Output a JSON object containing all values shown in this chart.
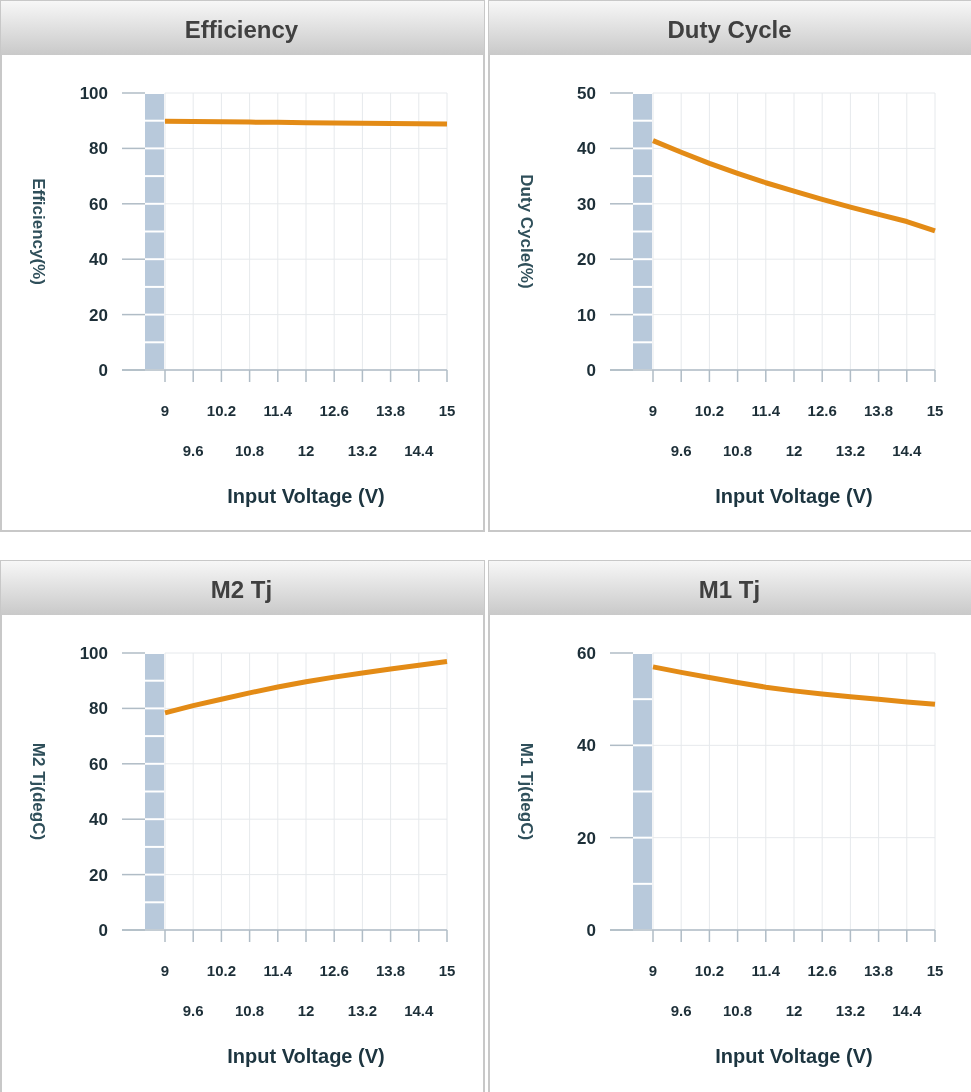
{
  "chart_data": [
    {
      "type": "line",
      "title": "Efficiency",
      "xlabel": "Input Voltage (V)",
      "ylabel": "Efficiency(%)",
      "x": [
        9,
        9.6,
        10.2,
        10.8,
        11.4,
        12,
        12.6,
        13.2,
        13.8,
        14.4,
        15
      ],
      "series": [
        {
          "color": "#e38b16",
          "values": [
            89.8,
            89.7,
            89.6,
            89.5,
            89.4,
            89.3,
            89.2,
            89.1,
            89.0,
            88.9,
            88.8
          ]
        }
      ],
      "xlim": [
        9,
        15
      ],
      "ylim": [
        0,
        100
      ],
      "xticks": [
        9,
        10.2,
        11.4,
        12.6,
        13.8,
        15
      ],
      "x2lim": [
        9,
        15
      ],
      "x2ticks": [
        9.6,
        10.8,
        12,
        13.2,
        14.4
      ],
      "yticks": [
        0,
        20,
        40,
        60,
        80,
        100
      ],
      "grid": true,
      "line_style": "solid",
      "marker": "none"
    },
    {
      "type": "line",
      "title": "Duty Cycle",
      "xlabel": "Input Voltage (V)",
      "ylabel": "Duty Cycle(%)",
      "x": [
        9,
        9.6,
        10.2,
        10.8,
        11.4,
        12,
        12.6,
        13.2,
        13.8,
        14.4,
        15
      ],
      "series": [
        {
          "color": "#e38b16",
          "values": [
            41.4,
            39.3,
            37.3,
            35.5,
            33.8,
            32.3,
            30.8,
            29.4,
            28.1,
            26.8,
            25.1
          ]
        }
      ],
      "xlim": [
        9,
        15
      ],
      "ylim": [
        0,
        50
      ],
      "xticks": [
        9,
        10.2,
        11.4,
        12.6,
        13.8,
        15
      ],
      "x2lim": [
        9,
        15
      ],
      "x2ticks": [
        9.6,
        10.8,
        12,
        13.2,
        14.4
      ],
      "yticks": [
        0,
        10,
        20,
        30,
        40,
        50
      ],
      "grid": true,
      "line_style": "solid",
      "marker": "none"
    },
    {
      "type": "line",
      "title": "M2 Tj",
      "xlabel": "Input Voltage (V)",
      "ylabel": "M2 Tj(degC)",
      "x": [
        9,
        9.6,
        10.2,
        10.8,
        11.4,
        12,
        12.6,
        13.2,
        13.8,
        14.4,
        15
      ],
      "series": [
        {
          "color": "#e38b16",
          "values": [
            78.4,
            81.0,
            83.3,
            85.6,
            87.7,
            89.6,
            91.3,
            92.8,
            94.2,
            95.6,
            96.9
          ]
        }
      ],
      "xlim": [
        9,
        15
      ],
      "ylim": [
        0,
        100
      ],
      "xticks": [
        9,
        10.2,
        11.4,
        12.6,
        13.8,
        15
      ],
      "x2lim": [
        9,
        15
      ],
      "x2ticks": [
        9.6,
        10.8,
        12,
        13.2,
        14.4
      ],
      "yticks": [
        0,
        20,
        40,
        60,
        80,
        100
      ],
      "grid": true,
      "line_style": "solid",
      "marker": "none"
    },
    {
      "type": "line",
      "title": "M1 Tj",
      "xlabel": "Input Voltage (V)",
      "ylabel": "M1 Tj(degC)",
      "x": [
        9,
        9.6,
        10.2,
        10.8,
        11.4,
        12,
        12.6,
        13.2,
        13.8,
        14.4,
        15
      ],
      "series": [
        {
          "color": "#e38b16",
          "values": [
            57.0,
            55.8,
            54.7,
            53.6,
            52.6,
            51.8,
            51.1,
            50.5,
            50.0,
            49.4,
            48.9
          ]
        }
      ],
      "xlim": [
        9,
        15
      ],
      "ylim": [
        0,
        60
      ],
      "xticks": [
        9,
        10.2,
        11.4,
        12.6,
        13.8,
        15
      ],
      "x2lim": [
        9,
        15
      ],
      "x2ticks": [
        9.6,
        10.8,
        12,
        13.2,
        14.4
      ],
      "yticks": [
        0,
        20,
        40,
        60
      ],
      "grid": true,
      "line_style": "solid",
      "marker": "none"
    }
  ]
}
